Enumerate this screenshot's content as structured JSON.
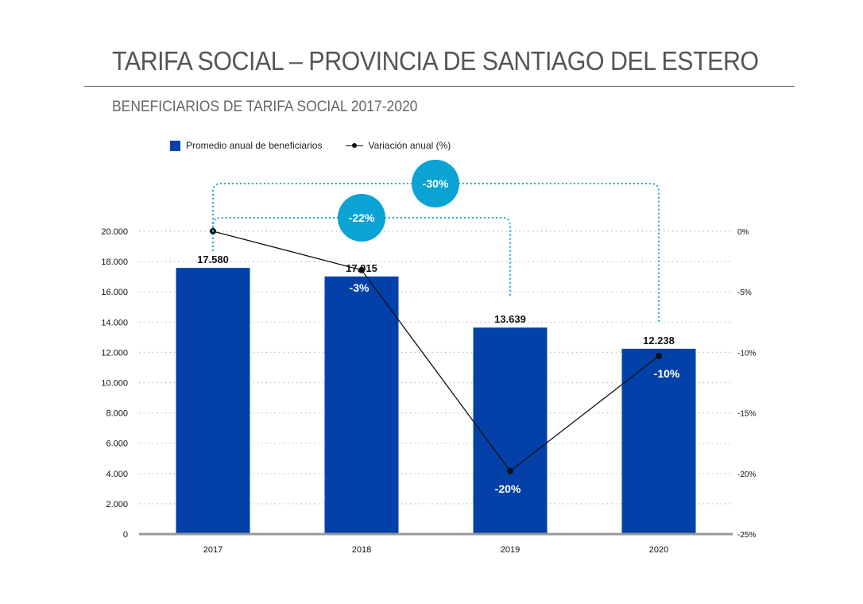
{
  "header": {
    "title": "TARIFA SOCIAL – PROVINCIA DE SANTIAGO DEL ESTERO",
    "subtitle": "BENEFICIARIOS DE TARIFA SOCIAL 2017-2020"
  },
  "colors": {
    "bar": "#0341a8",
    "line": "#111111",
    "bubble": "#0aa3d4",
    "bracket": "#1aa9cf",
    "grid": "#bfbfbf"
  },
  "chart_data": {
    "type": "bar",
    "categories": [
      "2017",
      "2018",
      "2019",
      "2020"
    ],
    "series": [
      {
        "name": "Promedio anual de beneficiarios",
        "type": "bar",
        "axis": "left",
        "values": [
          17580,
          17015,
          13639,
          12238
        ],
        "labels": [
          "17.580",
          "17.015",
          "13.639",
          "12.238"
        ]
      },
      {
        "name": "Variación anual (%)",
        "type": "line",
        "axis": "right",
        "values": [
          0,
          -3.2,
          -19.8,
          -10.3
        ],
        "labels": [
          "",
          "-3%",
          "-20%",
          "-10%"
        ]
      }
    ],
    "y_left": {
      "lim": [
        0,
        20000
      ],
      "ticks": [
        0,
        2000,
        4000,
        6000,
        8000,
        10000,
        12000,
        14000,
        16000,
        18000,
        20000
      ],
      "tick_labels": [
        "0",
        "2.000",
        "4.000",
        "6.000",
        "8.000",
        "10.000",
        "12.000",
        "14.000",
        "16.000",
        "18.000",
        "20.000"
      ]
    },
    "y_right": {
      "lim": [
        -25,
        0
      ],
      "ticks": [
        0,
        -5,
        -10,
        -15,
        -20,
        -25
      ],
      "tick_labels": [
        "0%",
        "-5%",
        "-10%",
        "-15%",
        "-20%",
        "-25%"
      ]
    },
    "grid": true,
    "legend_position": "top-left",
    "annotations": [
      {
        "from": "2017",
        "to": "2019",
        "label": "-22%"
      },
      {
        "from": "2017",
        "to": "2020",
        "label": "-30%"
      }
    ]
  }
}
